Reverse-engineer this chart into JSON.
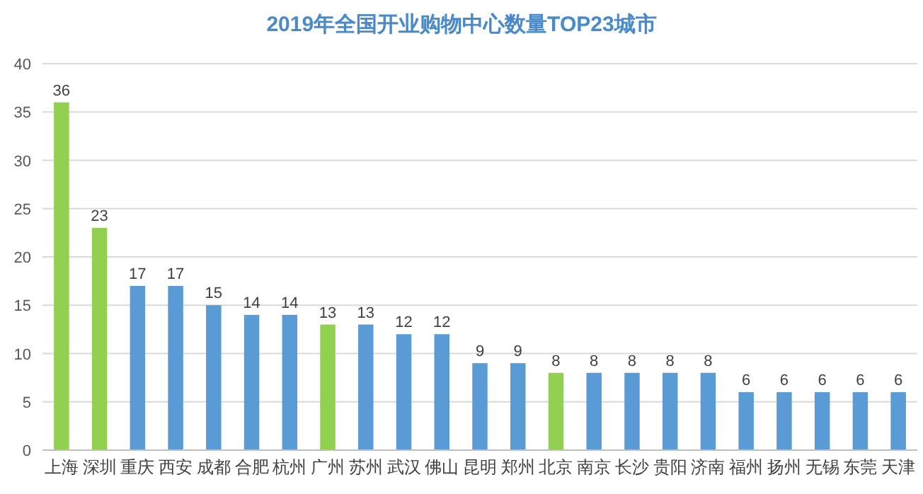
{
  "chart_data": {
    "type": "bar",
    "title": "2019年全国开业购物中心数量TOP23城市",
    "categories": [
      "上海",
      "深圳",
      "重庆",
      "西安",
      "成都",
      "合肥",
      "杭州",
      "广州",
      "苏州",
      "武汉",
      "佛山",
      "昆明",
      "郑州",
      "北京",
      "南京",
      "长沙",
      "贵阳",
      "济南",
      "福州",
      "扬州",
      "无锡",
      "东莞",
      "天津"
    ],
    "values": [
      36,
      23,
      17,
      17,
      15,
      14,
      14,
      13,
      13,
      12,
      12,
      9,
      9,
      8,
      8,
      8,
      8,
      8,
      6,
      6,
      6,
      6,
      6
    ],
    "colors": [
      "#92d050",
      "#92d050",
      "#5b9bd5",
      "#5b9bd5",
      "#5b9bd5",
      "#5b9bd5",
      "#5b9bd5",
      "#92d050",
      "#5b9bd5",
      "#5b9bd5",
      "#5b9bd5",
      "#5b9bd5",
      "#5b9bd5",
      "#92d050",
      "#5b9bd5",
      "#5b9bd5",
      "#5b9bd5",
      "#5b9bd5",
      "#5b9bd5",
      "#5b9bd5",
      "#5b9bd5",
      "#5b9bd5",
      "#5b9bd5"
    ],
    "ylim": [
      0,
      40
    ],
    "yticks": [
      0,
      5,
      10,
      15,
      20,
      25,
      30,
      35,
      40
    ],
    "grid": "y",
    "data_labels": true
  }
}
